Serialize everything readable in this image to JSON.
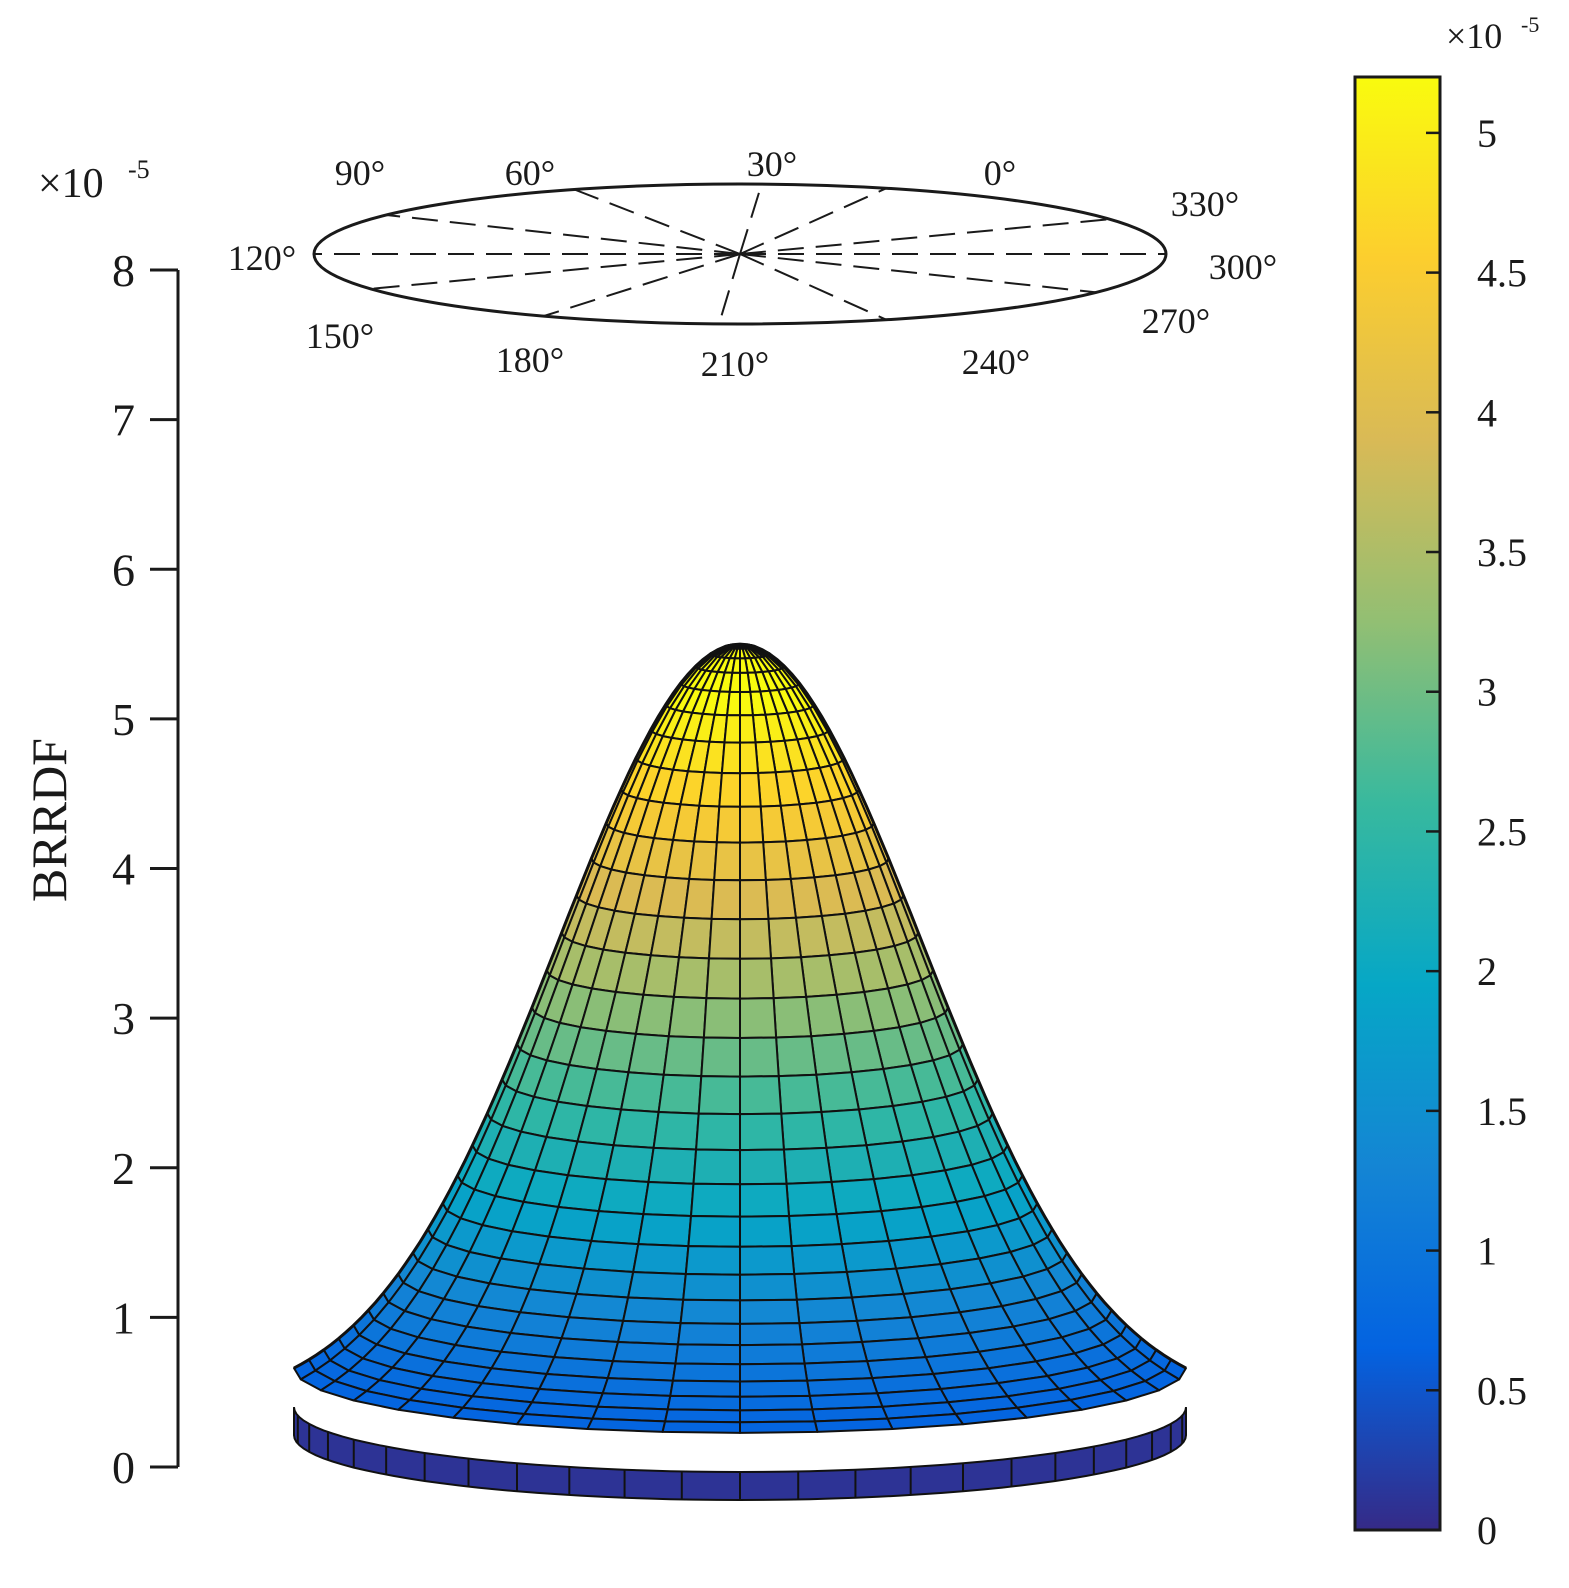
{
  "chart_data": {
    "type": "surface",
    "zlabel": "BRRDF",
    "z_multiplier": "×10",
    "z_multiplier_exponent": "-5",
    "zlim": [
      0,
      8
    ],
    "z_ticks": [
      "0",
      "1",
      "2",
      "3",
      "4",
      "5",
      "6",
      "7",
      "8"
    ],
    "colorbar": {
      "multiplier": "×10",
      "multiplier_exponent": "-5",
      "range": [
        0,
        5.2
      ],
      "ticks": [
        "0",
        "0.5",
        "1",
        "1.5",
        "2",
        "2.5",
        "3",
        "3.5",
        "4",
        "4.5",
        "5"
      ],
      "colormap": "parula",
      "stops": [
        "#352a87",
        "#0363e1",
        "#1485d4",
        "#06a7c6",
        "#38b99e",
        "#92bf73",
        "#d9ba56",
        "#fcce2e",
        "#f9fb0e"
      ]
    },
    "azimuth_labels": [
      "0°",
      "30°",
      "60°",
      "90°",
      "120°",
      "150°",
      "180°",
      "210°",
      "240°",
      "270°",
      "300°",
      "330°"
    ],
    "surface": {
      "peak_value": 5.5,
      "base_value": 0.4,
      "profile": "bell-shaped, peak at zenith",
      "grid_lines": "black mesh"
    }
  }
}
